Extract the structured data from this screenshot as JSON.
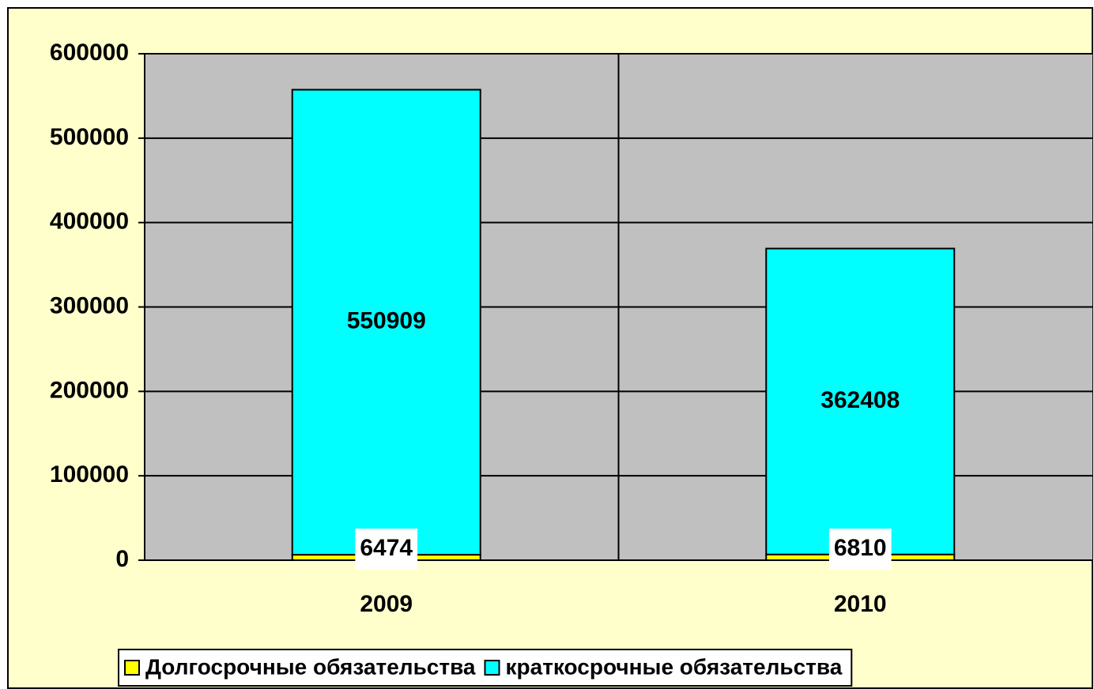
{
  "chart_data": {
    "type": "bar",
    "stacked": true,
    "categories": [
      "2009",
      "2010"
    ],
    "series": [
      {
        "name": "Долгосрочные обязательства",
        "color": "#ffff00",
        "values": [
          6474,
          6810
        ]
      },
      {
        "name": "краткосрочные обязательства",
        "color": "#00ffff",
        "values": [
          550909,
          362408
        ]
      }
    ],
    "ylim": [
      0,
      600000
    ],
    "yticks": [
      0,
      100000,
      200000,
      300000,
      400000,
      500000,
      600000
    ],
    "grid": true,
    "legend": "bottom"
  }
}
